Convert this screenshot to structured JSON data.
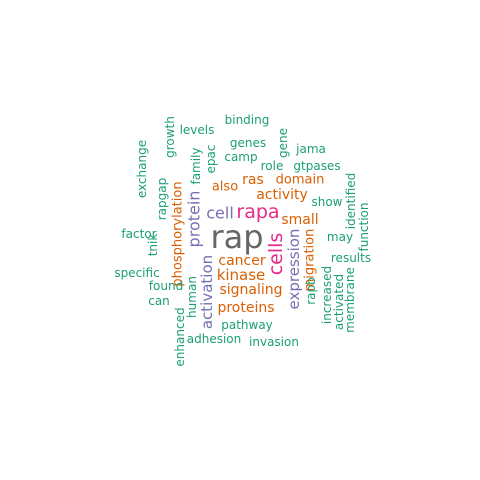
{
  "word_cloud": {
    "palette": {
      "green": "#1b9e77",
      "orange": "#d95f02",
      "purple": "#7570b3",
      "magenta": "#e7298a",
      "gray": "#666666"
    },
    "words": [
      {
        "text": "rap",
        "color": "gray"
      },
      {
        "text": "rapa",
        "color": "magenta"
      },
      {
        "text": "cells",
        "color": "magenta"
      },
      {
        "text": "cell",
        "color": "purple"
      },
      {
        "text": "protein",
        "color": "purple"
      },
      {
        "text": "expression",
        "color": "purple"
      },
      {
        "text": "activation",
        "color": "purple"
      },
      {
        "text": "kinase",
        "color": "orange"
      },
      {
        "text": "signaling",
        "color": "orange"
      },
      {
        "text": "proteins",
        "color": "orange"
      },
      {
        "text": "cancer",
        "color": "orange"
      },
      {
        "text": "ras",
        "color": "orange"
      },
      {
        "text": "domain",
        "color": "orange"
      },
      {
        "text": "activity",
        "color": "orange"
      },
      {
        "text": "small",
        "color": "orange"
      },
      {
        "text": "also",
        "color": "orange"
      },
      {
        "text": "phosphorylation",
        "color": "orange"
      },
      {
        "text": "migration",
        "color": "orange"
      },
      {
        "text": "binding",
        "color": "green"
      },
      {
        "text": "growth",
        "color": "green"
      },
      {
        "text": "levels",
        "color": "green"
      },
      {
        "text": "gene",
        "color": "green"
      },
      {
        "text": "genes",
        "color": "green"
      },
      {
        "text": "epac",
        "color": "green"
      },
      {
        "text": "camp",
        "color": "green"
      },
      {
        "text": "jama",
        "color": "green"
      },
      {
        "text": "exchange",
        "color": "green"
      },
      {
        "text": "family",
        "color": "green"
      },
      {
        "text": "role",
        "color": "green"
      },
      {
        "text": "gtpases",
        "color": "green"
      },
      {
        "text": "identified",
        "color": "green"
      },
      {
        "text": "rapgap",
        "color": "green"
      },
      {
        "text": "show",
        "color": "green"
      },
      {
        "text": "factor",
        "color": "green"
      },
      {
        "text": "function",
        "color": "green"
      },
      {
        "text": "may",
        "color": "green"
      },
      {
        "text": "tnik",
        "color": "green"
      },
      {
        "text": "results",
        "color": "green"
      },
      {
        "text": "specific",
        "color": "green"
      },
      {
        "text": "found",
        "color": "green"
      },
      {
        "text": "human",
        "color": "green"
      },
      {
        "text": "rapb",
        "color": "green"
      },
      {
        "text": "increased",
        "color": "green"
      },
      {
        "text": "activated",
        "color": "green"
      },
      {
        "text": "membrane",
        "color": "green"
      },
      {
        "text": "can",
        "color": "green"
      },
      {
        "text": "enhanced",
        "color": "green"
      },
      {
        "text": "pathway",
        "color": "green"
      },
      {
        "text": "adhesion",
        "color": "green"
      },
      {
        "text": "invasion",
        "color": "green"
      }
    ]
  }
}
